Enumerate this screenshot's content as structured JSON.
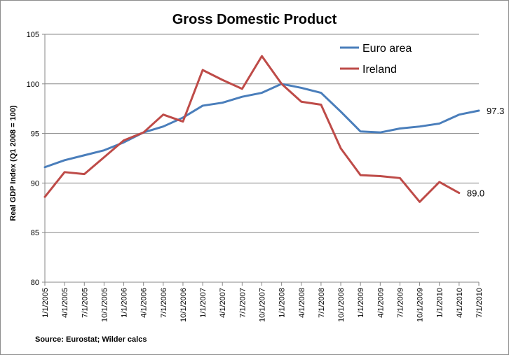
{
  "chart_data": {
    "type": "line",
    "title": "Gross Domestic Product",
    "ylabel": "Real GDP Index (Q1 2008 = 100)",
    "xlabel": "",
    "ylim": [
      80,
      105
    ],
    "yticks": [
      80,
      85,
      90,
      95,
      100,
      105
    ],
    "grid": "horizontal",
    "legend_position": "top-right",
    "categories": [
      "1/1/2005",
      "4/1/2005",
      "7/1/2005",
      "10/1/2005",
      "1/1/2006",
      "4/1/2006",
      "7/1/2006",
      "10/1/2006",
      "1/1/2007",
      "4/1/2007",
      "7/1/2007",
      "10/1/2007",
      "1/1/2008",
      "4/1/2008",
      "7/1/2008",
      "10/1/2008",
      "1/1/2009",
      "4/1/2009",
      "7/1/2009",
      "10/1/2009",
      "1/1/2010",
      "4/1/2010",
      "7/1/2010"
    ],
    "series": [
      {
        "name": "Euro area",
        "color": "#4a7ebb",
        "values": [
          91.6,
          92.3,
          92.8,
          93.3,
          94.1,
          95.1,
          95.7,
          96.6,
          97.8,
          98.1,
          98.7,
          99.1,
          100.0,
          99.6,
          99.1,
          97.2,
          95.2,
          95.1,
          95.5,
          95.7,
          96.0,
          96.9,
          97.3
        ],
        "end_label": "97.3"
      },
      {
        "name": "Ireland",
        "color": "#be4b48",
        "values": [
          88.6,
          91.1,
          90.9,
          92.6,
          94.3,
          95.1,
          96.9,
          96.2,
          101.4,
          100.4,
          99.5,
          102.8,
          100.0,
          98.2,
          97.9,
          93.5,
          90.8,
          90.7,
          90.5,
          88.1,
          90.1,
          89.0,
          null
        ],
        "end_label": "89.0"
      }
    ],
    "source": "Source: Eurostat; Wilder calcs"
  }
}
